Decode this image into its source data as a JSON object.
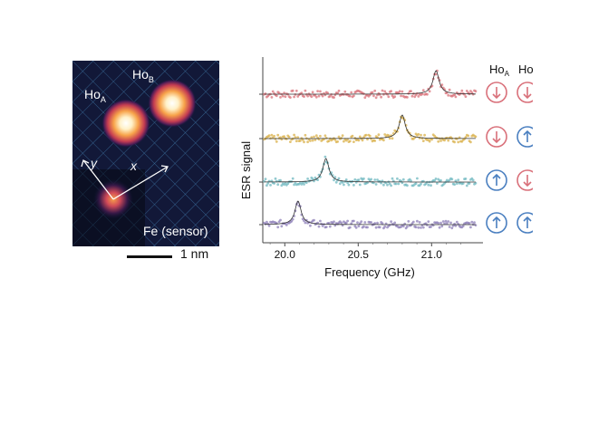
{
  "stm_image": {
    "atom_a": {
      "label": "Ho",
      "sub": "A"
    },
    "atom_b": {
      "label": "Ho",
      "sub": "B"
    },
    "axis_x": "x",
    "axis_y": "y",
    "sensor_label": "Fe (sensor)",
    "scale_bar_label": "1 nm"
  },
  "chart_data": {
    "type": "scatter",
    "xlabel": "Frequency (GHz)",
    "ylabel": "ESR signal",
    "xlim": [
      19.85,
      21.35
    ],
    "xticks": [
      "20.0",
      "20.5",
      "21.0"
    ],
    "xtick_values": [
      20.0,
      20.5,
      21.0
    ],
    "spin_columns": [
      {
        "label": "Ho",
        "sub": "A"
      },
      {
        "label": "Ho",
        "sub": "B"
      }
    ],
    "series": [
      {
        "peak": 21.03,
        "color": "#d9727a",
        "spins": [
          "down",
          "down"
        ]
      },
      {
        "peak": 20.8,
        "color": "#d9b04a",
        "spins": [
          "down",
          "up"
        ]
      },
      {
        "peak": 20.28,
        "color": "#6fb8c0",
        "spins": [
          "up",
          "down"
        ]
      },
      {
        "peak": 20.09,
        "color": "#8d7fb8",
        "spins": [
          "up",
          "up"
        ]
      }
    ],
    "arrow_colors": {
      "down": "#d9707a",
      "up": "#4a7fc0"
    }
  }
}
